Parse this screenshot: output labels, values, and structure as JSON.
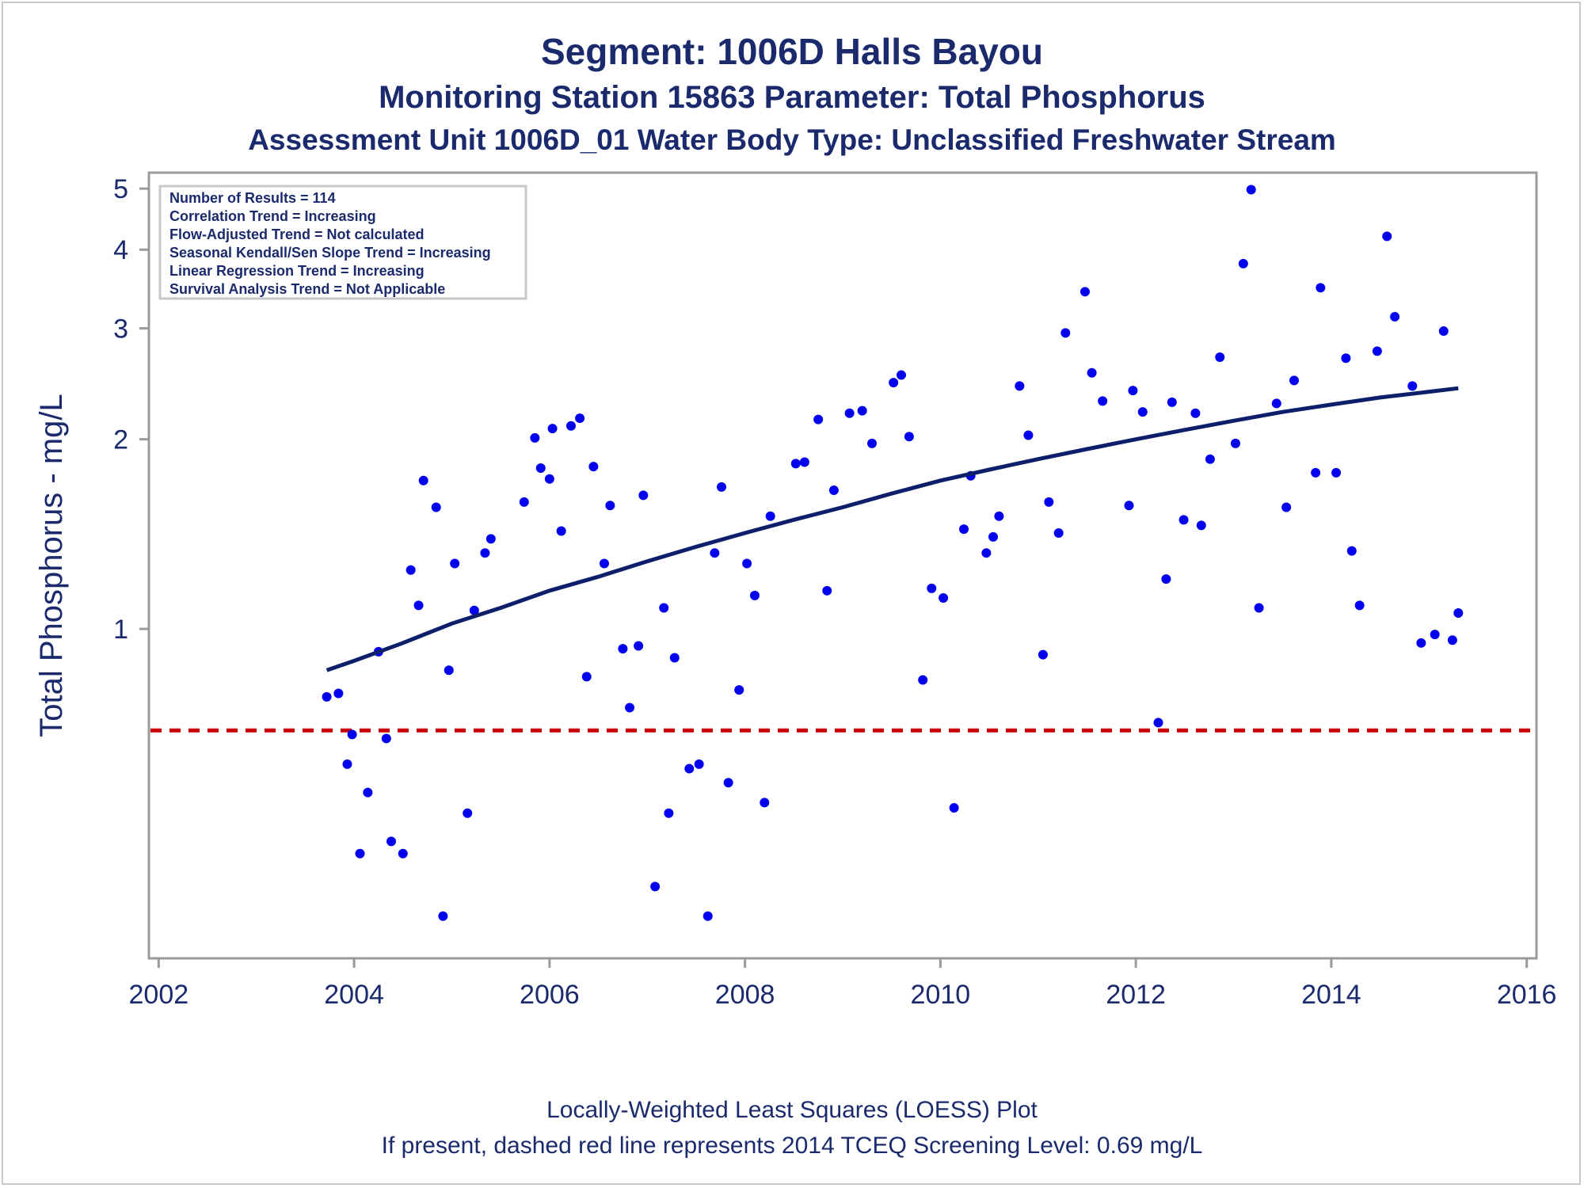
{
  "titles": {
    "line1": "Segment: 1006D  Halls Bayou",
    "line2": "Monitoring Station 15863 Parameter: Total Phosphorus",
    "line3": "Assessment Unit 1006D_01   Water Body Type: Unclassified Freshwater Stream"
  },
  "footnotes": {
    "line1": "Locally-Weighted Least Squares (LOESS) Plot",
    "line2": "If present, dashed red line represents 2014 TCEQ Screening Level: 0.69 mg/L"
  },
  "stats_box": [
    "Number of Results = 114",
    "Correlation Trend = Increasing",
    "Flow-Adjusted Trend = Not calculated",
    "Seasonal Kendall/Sen Slope Trend = Increasing",
    "Linear Regression Trend = Increasing",
    "Survival Analysis Trend = Not Applicable"
  ],
  "colors": {
    "points": "#0000ee",
    "loess": "#0d1f6b",
    "screening": "#cc0000",
    "text": "#1a2a6c",
    "frame": "#9a9a9a"
  },
  "chart_data": {
    "type": "scatter",
    "xlabel": "",
    "ylabel": "Total Phosphorus - mg/L",
    "yscale": "log",
    "xlim": [
      2001.9,
      2016.1
    ],
    "ylim": [
      0.3,
      5.3
    ],
    "xticks": [
      2002,
      2004,
      2006,
      2008,
      2010,
      2012,
      2014,
      2016
    ],
    "yticks": [
      1,
      2,
      3,
      4,
      5
    ],
    "grid": false,
    "screening_level": 0.69,
    "points": [
      [
        2003.72,
        0.78
      ],
      [
        2003.84,
        0.79
      ],
      [
        2003.93,
        0.61
      ],
      [
        2003.98,
        0.68
      ],
      [
        2004.06,
        0.44
      ],
      [
        2004.14,
        0.55
      ],
      [
        2004.25,
        0.92
      ],
      [
        2004.33,
        0.67
      ],
      [
        2004.38,
        0.46
      ],
      [
        2004.5,
        0.44
      ],
      [
        2004.58,
        1.24
      ],
      [
        2004.66,
        1.09
      ],
      [
        2004.71,
        1.72
      ],
      [
        2004.84,
        1.56
      ],
      [
        2004.91,
        0.35
      ],
      [
        2004.97,
        0.86
      ],
      [
        2005.03,
        1.27
      ],
      [
        2005.16,
        0.51
      ],
      [
        2005.23,
        1.07
      ],
      [
        2005.34,
        1.32
      ],
      [
        2005.4,
        1.39
      ],
      [
        2005.74,
        1.59
      ],
      [
        2005.85,
        2.01
      ],
      [
        2005.91,
        1.8
      ],
      [
        2006.0,
        1.73
      ],
      [
        2006.03,
        2.08
      ],
      [
        2006.12,
        1.43
      ],
      [
        2006.22,
        2.1
      ],
      [
        2006.31,
        2.16
      ],
      [
        2006.38,
        0.84
      ],
      [
        2006.45,
        1.81
      ],
      [
        2006.56,
        1.27
      ],
      [
        2006.62,
        1.57
      ],
      [
        2006.75,
        0.93
      ],
      [
        2006.82,
        0.75
      ],
      [
        2006.91,
        0.94
      ],
      [
        2006.96,
        1.63
      ],
      [
        2007.08,
        0.39
      ],
      [
        2007.17,
        1.08
      ],
      [
        2007.22,
        0.51
      ],
      [
        2007.28,
        0.9
      ],
      [
        2007.43,
        0.6
      ],
      [
        2007.53,
        0.61
      ],
      [
        2007.62,
        0.35
      ],
      [
        2007.69,
        1.32
      ],
      [
        2007.76,
        1.68
      ],
      [
        2007.83,
        0.57
      ],
      [
        2007.94,
        0.8
      ],
      [
        2008.02,
        1.27
      ],
      [
        2008.1,
        1.13
      ],
      [
        2008.2,
        0.53
      ],
      [
        2008.26,
        1.51
      ],
      [
        2008.52,
        1.83
      ],
      [
        2008.61,
        1.84
      ],
      [
        2008.75,
        2.15
      ],
      [
        2008.84,
        1.15
      ],
      [
        2008.91,
        1.66
      ],
      [
        2009.07,
        2.2
      ],
      [
        2009.2,
        2.22
      ],
      [
        2009.3,
        1.97
      ],
      [
        2009.52,
        2.46
      ],
      [
        2009.6,
        2.53
      ],
      [
        2009.68,
        2.02
      ],
      [
        2009.82,
        0.83
      ],
      [
        2009.91,
        1.16
      ],
      [
        2010.03,
        1.12
      ],
      [
        2010.14,
        0.52
      ],
      [
        2010.24,
        1.44
      ],
      [
        2010.31,
        1.75
      ],
      [
        2010.47,
        1.32
      ],
      [
        2010.54,
        1.4
      ],
      [
        2010.6,
        1.51
      ],
      [
        2010.81,
        2.43
      ],
      [
        2010.9,
        2.03
      ],
      [
        2011.05,
        0.91
      ],
      [
        2011.11,
        1.59
      ],
      [
        2011.21,
        1.42
      ],
      [
        2011.28,
        2.95
      ],
      [
        2011.48,
        3.43
      ],
      [
        2011.55,
        2.55
      ],
      [
        2011.66,
        2.3
      ],
      [
        2011.93,
        1.57
      ],
      [
        2011.97,
        2.39
      ],
      [
        2012.07,
        2.21
      ],
      [
        2012.23,
        0.71
      ],
      [
        2012.31,
        1.2
      ],
      [
        2012.37,
        2.29
      ],
      [
        2012.49,
        1.49
      ],
      [
        2012.61,
        2.2
      ],
      [
        2012.67,
        1.46
      ],
      [
        2012.76,
        1.86
      ],
      [
        2012.86,
        2.7
      ],
      [
        2013.02,
        1.97
      ],
      [
        2013.1,
        3.8
      ],
      [
        2013.18,
        4.98
      ],
      [
        2013.26,
        1.08
      ],
      [
        2013.44,
        2.28
      ],
      [
        2013.54,
        1.56
      ],
      [
        2013.62,
        2.48
      ],
      [
        2013.84,
        1.77
      ],
      [
        2013.89,
        3.48
      ],
      [
        2014.05,
        1.77
      ],
      [
        2014.15,
        2.69
      ],
      [
        2014.21,
        1.33
      ],
      [
        2014.29,
        1.09
      ],
      [
        2014.47,
        2.76
      ],
      [
        2014.57,
        4.2
      ],
      [
        2014.65,
        3.13
      ],
      [
        2014.83,
        2.43
      ],
      [
        2014.92,
        0.95
      ],
      [
        2015.06,
        0.98
      ],
      [
        2015.15,
        2.97
      ],
      [
        2015.24,
        0.96
      ],
      [
        2015.3,
        1.06
      ]
    ],
    "loess": [
      [
        2003.72,
        0.86
      ],
      [
        2004.0,
        0.89
      ],
      [
        2004.5,
        0.95
      ],
      [
        2005.0,
        1.02
      ],
      [
        2005.5,
        1.08
      ],
      [
        2006.0,
        1.15
      ],
      [
        2006.5,
        1.21
      ],
      [
        2007.0,
        1.28
      ],
      [
        2007.5,
        1.35
      ],
      [
        2008.0,
        1.42
      ],
      [
        2008.5,
        1.49
      ],
      [
        2009.0,
        1.56
      ],
      [
        2009.5,
        1.64
      ],
      [
        2010.0,
        1.72
      ],
      [
        2010.5,
        1.79
      ],
      [
        2011.0,
        1.86
      ],
      [
        2011.5,
        1.93
      ],
      [
        2012.0,
        2.0
      ],
      [
        2012.5,
        2.07
      ],
      [
        2013.0,
        2.14
      ],
      [
        2013.5,
        2.21
      ],
      [
        2014.0,
        2.27
      ],
      [
        2014.5,
        2.33
      ],
      [
        2015.0,
        2.38
      ],
      [
        2015.3,
        2.41
      ]
    ]
  }
}
